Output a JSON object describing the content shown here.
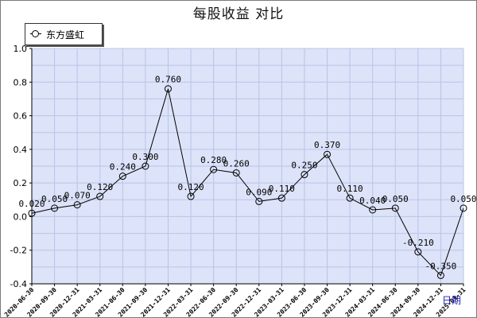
{
  "chart_data": {
    "type": "line",
    "title": "每股收益  对比",
    "xlabel": "日期",
    "ylabel": "",
    "ylim": [
      -0.4,
      1.0
    ],
    "yticks": [
      "1.0",
      "0.8",
      "0.6",
      "0.4",
      "0.2",
      "0.0",
      "-0.2",
      "-0.4"
    ],
    "grid": true,
    "legend_position": "top-left",
    "categories": [
      "2020-06-30",
      "2020-09-30",
      "2020-12-31",
      "2021-03-31",
      "2021-06-30",
      "2021-09-30",
      "2021-12-31",
      "2022-03-31",
      "2022-06-30",
      "2022-09-30",
      "2022-12-31",
      "2023-03-31",
      "2023-06-30",
      "2023-09-30",
      "2023-12-31",
      "2024-03-31",
      "2024-06-30",
      "2024-09-30",
      "2024-12-31",
      "2025-03-31"
    ],
    "series": [
      {
        "name": "东方盛虹",
        "values": [
          0.02,
          0.05,
          0.07,
          0.12,
          0.24,
          0.3,
          0.76,
          0.12,
          0.28,
          0.26,
          0.09,
          0.11,
          0.25,
          0.37,
          0.11,
          0.04,
          0.05,
          -0.21,
          -0.35,
          0.05
        ],
        "labels": [
          "0.020",
          "0.050",
          "0.070",
          "0.120",
          "0.240",
          "0.300",
          "0.760",
          "0.120",
          "0.280",
          "0.260",
          "0.090",
          "0.110",
          "0.250",
          "0.370",
          "0.110",
          "0.040",
          "0.050",
          "-0.210",
          "-0.350",
          "0.050"
        ]
      }
    ]
  },
  "colors": {
    "plot_background": "#dde3f8",
    "grid": "#b8c4e8",
    "line": "#000000",
    "axis_title": "#1a1aa8"
  }
}
